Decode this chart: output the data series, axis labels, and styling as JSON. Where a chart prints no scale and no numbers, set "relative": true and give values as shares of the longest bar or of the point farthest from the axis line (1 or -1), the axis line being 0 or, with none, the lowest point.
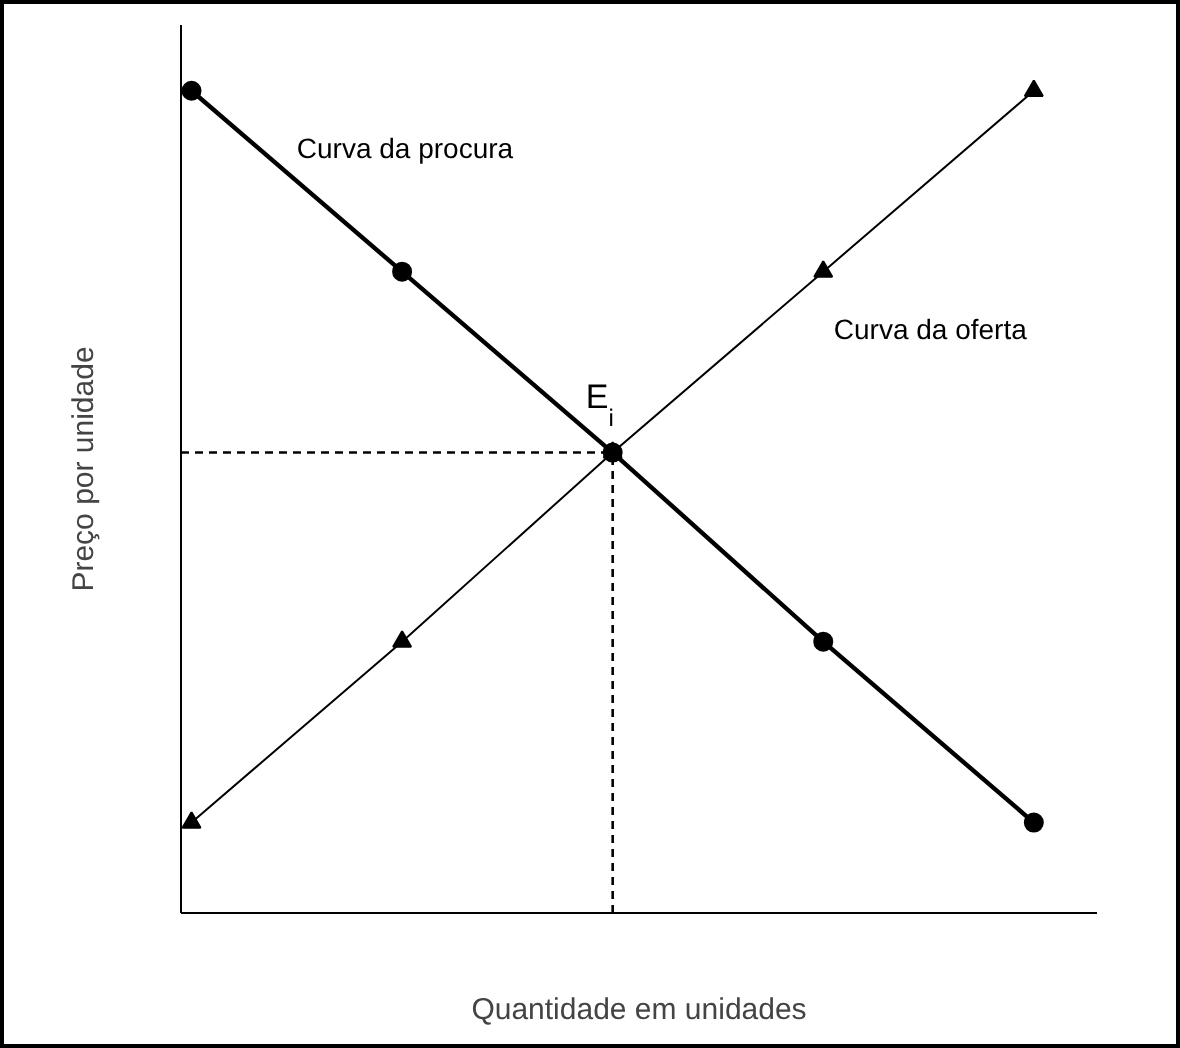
{
  "chart_data": {
    "type": "line",
    "relative": true,
    "xlabel": "Quantidade em unidades",
    "ylabel": "Preço por unidade",
    "categories": [
      null,
      null,
      null,
      null,
      null
    ],
    "series": [
      {
        "name": "Curva da procura",
        "color": "#000000",
        "values": [
          1,
          0.78,
          0.56,
          0.33,
          0.11
        ],
        "marker": "circle"
      },
      {
        "name": "Curva da oferta",
        "color": "#000000",
        "values": [
          0.11,
          0.33,
          0.56,
          0.78,
          1
        ],
        "marker": "triangle"
      }
    ],
    "annotations": [
      "E$_{i}$"
    ],
    "tick_labels": false
  }
}
